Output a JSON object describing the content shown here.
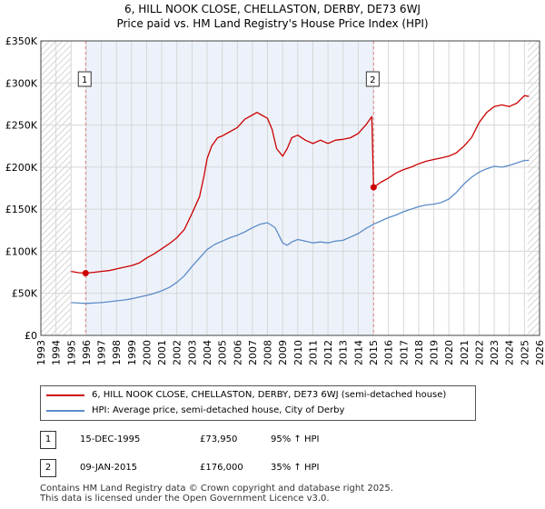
{
  "title_line1": "6, HILL NOOK CLOSE, CHELLASTON, DERBY, DE73 6WJ",
  "title_line2": "Price paid vs. HM Land Registry's House Price Index (HPI)",
  "chart_data": {
    "type": "line",
    "xlim": [
      1993,
      2026
    ],
    "ylim": [
      0,
      350000
    ],
    "y_ticks": [
      0,
      50000,
      100000,
      150000,
      200000,
      250000,
      300000,
      350000
    ],
    "y_tick_labels": [
      "£0",
      "£50K",
      "£100K",
      "£150K",
      "£200K",
      "£250K",
      "£300K",
      "£350K"
    ],
    "x_ticks": [
      1993,
      1994,
      1995,
      1996,
      1997,
      1998,
      1999,
      2000,
      2001,
      2002,
      2003,
      2004,
      2005,
      2006,
      2007,
      2008,
      2009,
      2010,
      2011,
      2012,
      2013,
      2014,
      2015,
      2016,
      2017,
      2018,
      2019,
      2020,
      2021,
      2022,
      2023,
      2024,
      2025,
      2026
    ],
    "grid": true,
    "hatched_regions": [
      [
        1993,
        1995.0
      ],
      [
        2025.2,
        2026
      ]
    ],
    "shaded_region": [
      1995.96,
      2015.02
    ],
    "series": [
      {
        "name": "6, HILL NOOK CLOSE, CHELLASTON, DERBY, DE73 6WJ (semi-detached house)",
        "color": "#cc0000",
        "x": [
          1995.0,
          1995.5,
          1995.96,
          1996.5,
          1997.0,
          1997.5,
          1998.0,
          1998.5,
          1999.0,
          1999.5,
          2000.0,
          2000.5,
          2001.0,
          2001.5,
          2002.0,
          2002.5,
          2003.0,
          2003.5,
          2003.8,
          2004.0,
          2004.3,
          2004.7,
          2005.0,
          2005.5,
          2006.0,
          2006.5,
          2007.0,
          2007.3,
          2007.6,
          2008.0,
          2008.3,
          2008.6,
          2009.0,
          2009.3,
          2009.6,
          2010.0,
          2010.5,
          2011.0,
          2011.5,
          2012.0,
          2012.5,
          2013.0,
          2013.5,
          2014.0,
          2014.5,
          2014.9,
          2015.02,
          2015.5,
          2016.0,
          2016.5,
          2017.0,
          2017.5,
          2018.0,
          2018.5,
          2019.0,
          2019.5,
          2020.0,
          2020.5,
          2021.0,
          2021.5,
          2022.0,
          2022.5,
          2023.0,
          2023.5,
          2024.0,
          2024.5,
          2025.0,
          2025.3
        ],
        "values": [
          76000,
          74500,
          73950,
          75000,
          76000,
          77000,
          79000,
          81000,
          83000,
          86000,
          92000,
          97000,
          103000,
          109000,
          116000,
          126000,
          145000,
          165000,
          190000,
          210000,
          225000,
          235000,
          237000,
          242000,
          247000,
          257000,
          262000,
          265000,
          262000,
          258000,
          245000,
          222000,
          213000,
          222000,
          235000,
          238000,
          232000,
          228000,
          232000,
          228000,
          232000,
          233000,
          235000,
          240000,
          250000,
          260000,
          176000,
          182000,
          187000,
          193000,
          197000,
          200000,
          204000,
          207000,
          209000,
          211000,
          213000,
          217000,
          225000,
          235000,
          253000,
          265000,
          272000,
          274000,
          272000,
          276000,
          285000,
          284000
        ]
      },
      {
        "name": "HPI: Average price, semi-detached house, City of Derby",
        "color": "#5b8cc8",
        "x": [
          1995.0,
          1995.5,
          1996.0,
          1996.5,
          1997.0,
          1997.5,
          1998.0,
          1998.5,
          1999.0,
          1999.5,
          2000.0,
          2000.5,
          2001.0,
          2001.5,
          2002.0,
          2002.5,
          2003.0,
          2003.5,
          2004.0,
          2004.5,
          2005.0,
          2005.5,
          2006.0,
          2006.5,
          2007.0,
          2007.5,
          2008.0,
          2008.5,
          2009.0,
          2009.3,
          2009.6,
          2010.0,
          2010.5,
          2011.0,
          2011.5,
          2012.0,
          2012.5,
          2013.0,
          2013.5,
          2014.0,
          2014.5,
          2015.0,
          2015.5,
          2016.0,
          2016.5,
          2017.0,
          2017.5,
          2018.0,
          2018.5,
          2019.0,
          2019.5,
          2020.0,
          2020.5,
          2021.0,
          2021.5,
          2022.0,
          2022.5,
          2023.0,
          2023.5,
          2024.0,
          2024.5,
          2025.0,
          2025.3
        ],
        "values": [
          39000,
          38500,
          38000,
          38500,
          39000,
          40000,
          41000,
          42000,
          43500,
          45500,
          47500,
          50000,
          53000,
          57000,
          63000,
          71000,
          82000,
          92000,
          102000,
          108000,
          112000,
          116000,
          119000,
          123000,
          128000,
          132000,
          134000,
          128000,
          110000,
          107000,
          111000,
          114000,
          112000,
          110000,
          111000,
          110000,
          112000,
          113000,
          117000,
          121000,
          127000,
          132000,
          136000,
          140000,
          143000,
          147000,
          150000,
          153000,
          155000,
          156000,
          158000,
          162000,
          170000,
          180000,
          188000,
          194000,
          198000,
          201000,
          200000,
          202000,
          205000,
          208000,
          208000
        ]
      }
    ],
    "sales": [
      {
        "label": "1",
        "x": 1995.96,
        "value": 73950
      },
      {
        "label": "2",
        "x": 2015.02,
        "value": 176000
      }
    ]
  },
  "legend": {
    "property_label": "6, HILL NOOK CLOSE, CHELLASTON, DERBY, DE73 6WJ (semi-detached house)",
    "hpi_label": "HPI: Average price, semi-detached house, City of Derby"
  },
  "transactions": [
    {
      "num": "1",
      "date": "15-DEC-1995",
      "price": "£73,950",
      "hpi": "95% ↑ HPI"
    },
    {
      "num": "2",
      "date": "09-JAN-2015",
      "price": "£176,000",
      "hpi": "35% ↑ HPI"
    }
  ],
  "footer": {
    "line1": "Contains HM Land Registry data © Crown copyright and database right 2025.",
    "line2": "This data is licensed under the Open Government Licence v3.0."
  }
}
